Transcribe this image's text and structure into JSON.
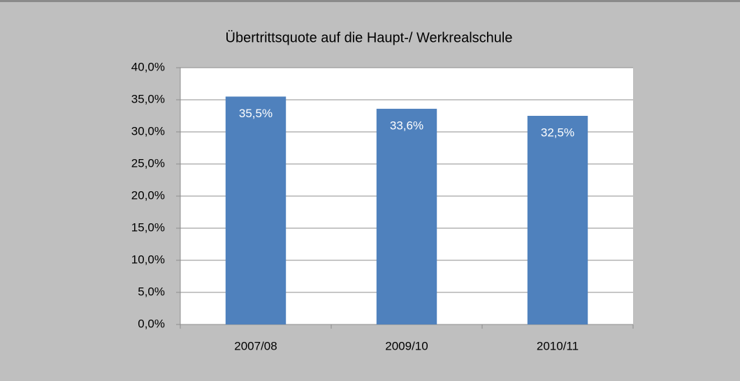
{
  "chart_data": {
    "type": "bar",
    "title": "Übertrittsquote auf die Haupt-/ Werkrealschule",
    "categories": [
      "2007/08",
      "2009/10",
      "2010/11"
    ],
    "values": [
      35.5,
      33.6,
      32.5
    ],
    "value_labels": [
      "35,5%",
      "33,6%",
      "32,5%"
    ],
    "color": "#4f81bd",
    "ylim": [
      0,
      40
    ],
    "yticks": [
      {
        "value": 0,
        "label": "0,0%"
      },
      {
        "value": 5,
        "label": "5,0%"
      },
      {
        "value": 10,
        "label": "10,0%"
      },
      {
        "value": 15,
        "label": "15,0%"
      },
      {
        "value": 20,
        "label": "20,0%"
      },
      {
        "value": 25,
        "label": "25,0%"
      },
      {
        "value": 30,
        "label": "30,0%"
      },
      {
        "value": 35,
        "label": "35,0%"
      },
      {
        "value": 40,
        "label": "40,0%"
      }
    ],
    "grid": true
  }
}
